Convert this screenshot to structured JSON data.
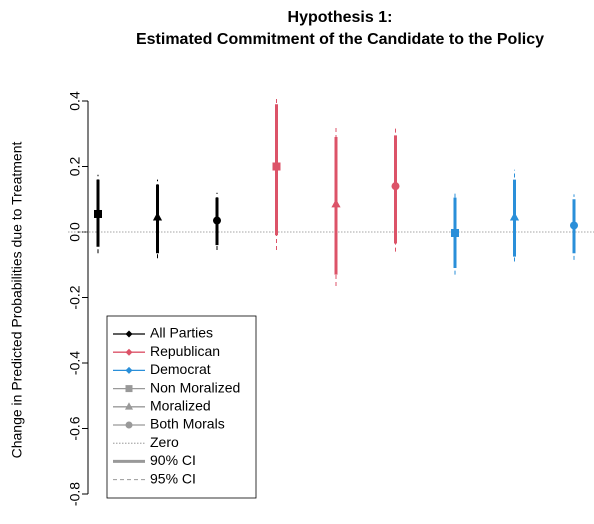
{
  "chart_data": {
    "type": "errorbar",
    "title": "Hypothesis 1:",
    "subtitle": "Estimated Commitment of the Candidate to the Policy",
    "y_label": "Change in Predicted Probabilities due to Treatment",
    "ylim": [
      -0.8,
      0.4
    ],
    "yticks": [
      0.4,
      0.2,
      {
        "value": 0,
        "label": "0.0"
      },
      -0.2,
      -0.4,
      -0.6,
      -0.8
    ],
    "conditions": [
      {
        "name": "Non Moralized",
        "marker": "square"
      },
      {
        "name": "Moralized",
        "marker": "triangle"
      },
      {
        "name": "Both Morals",
        "marker": "circle"
      }
    ],
    "condition_color": "#999999",
    "series": [
      {
        "name": "All Parties",
        "color": "#000000",
        "values": [
          0.055,
          0.045,
          0.035
        ],
        "ci90": [
          [
            -0.045,
            0.16
          ],
          [
            -0.065,
            0.145
          ],
          [
            -0.04,
            0.105
          ]
        ],
        "ci95": [
          [
            -0.065,
            0.175
          ],
          [
            -0.08,
            0.16
          ],
          [
            -0.055,
            0.12
          ]
        ]
      },
      {
        "name": "Republican",
        "color": "#dc5368",
        "values": [
          0.2,
          0.085,
          0.14
        ],
        "ci90": [
          [
            -0.01,
            0.39
          ],
          [
            -0.13,
            0.29
          ],
          [
            -0.035,
            0.295
          ]
        ],
        "ci95": [
          [
            -0.055,
            0.41
          ],
          [
            -0.165,
            0.32
          ],
          [
            -0.06,
            0.32
          ]
        ]
      },
      {
        "name": "Democrat",
        "color": "#2a8fd9",
        "values": [
          -0.003,
          0.045,
          0.02
        ],
        "ci90": [
          [
            -0.11,
            0.105
          ],
          [
            -0.075,
            0.16
          ],
          [
            -0.065,
            0.1
          ]
        ],
        "ci95": [
          [
            -0.13,
            0.12
          ],
          [
            -0.09,
            0.19
          ],
          [
            -0.085,
            0.115
          ]
        ]
      }
    ],
    "reference_line": {
      "name": "Zero",
      "value": 0
    },
    "ci_labels": [
      "90% CI",
      "95% CI"
    ]
  }
}
